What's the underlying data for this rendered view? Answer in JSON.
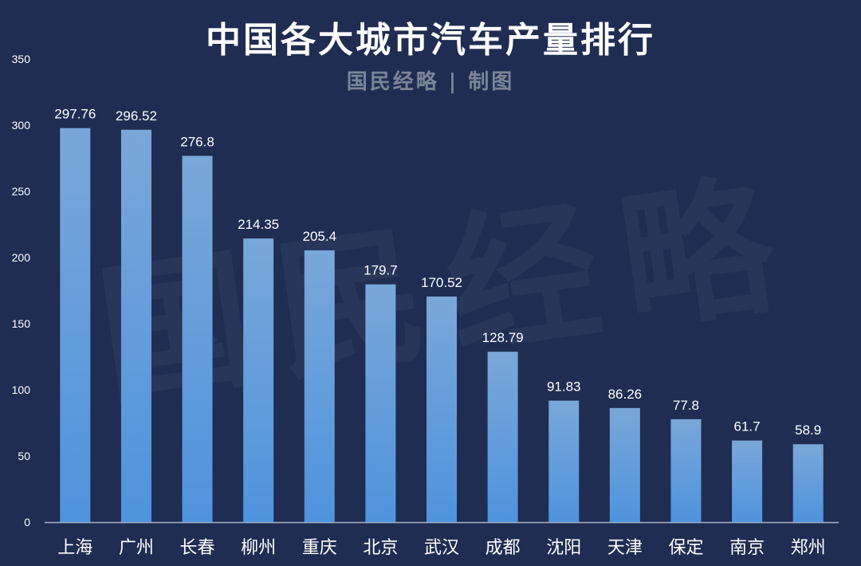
{
  "chart_data": {
    "type": "bar",
    "title": "中国各大城市汽车产量排行",
    "subtitle": "国民经略 | 制图",
    "watermark": "国民经略",
    "xlabel": "",
    "ylabel": "",
    "ylim": [
      0,
      350
    ],
    "yticks": [
      0,
      50,
      100,
      150,
      200,
      250,
      300,
      350
    ],
    "grid": false,
    "categories": [
      "上海",
      "广州",
      "长春",
      "柳州",
      "重庆",
      "北京",
      "武汉",
      "成都",
      "沈阳",
      "天津",
      "保定",
      "南京",
      "郑州"
    ],
    "values": [
      297.76,
      296.52,
      276.8,
      214.35,
      205.4,
      179.7,
      170.52,
      128.79,
      91.83,
      86.26,
      77.8,
      61.7,
      58.9
    ],
    "value_labels": [
      "297.76",
      "296.52",
      "276.8",
      "214.35",
      "205.4",
      "179.7",
      "170.52",
      "128.79",
      "91.83",
      "86.26",
      "77.8",
      "61.7",
      "58.9"
    ],
    "colors": {
      "background": "#1f2d52",
      "bar_top": "#7aa7d9",
      "bar_bottom": "#4f93dd",
      "axis_text": "#ffffff",
      "axis_line": "#a8b3c7",
      "subtitle": "#7c8596"
    }
  }
}
